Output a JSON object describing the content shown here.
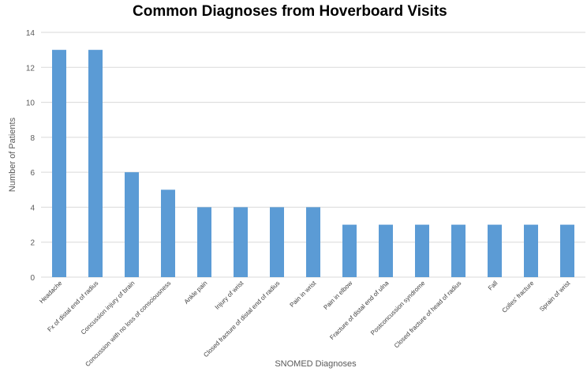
{
  "chart_data": {
    "type": "bar",
    "title": "Common Diagnoses from Hoverboard Visits",
    "xlabel": "SNOMED Diagnoses",
    "ylabel": "Number of Patients",
    "ylim": [
      0,
      14
    ],
    "yticks": [
      0,
      2,
      4,
      6,
      8,
      10,
      12,
      14
    ],
    "grid": true,
    "legend": "none",
    "bar_color": "#5b9bd5",
    "categories": [
      "Headache",
      "Fx of distal end of radius",
      "Concussion injury of brain",
      "Concussion with no loss of consciousness",
      "Ankle pain",
      "Injury of wrist",
      "Closed fracture of distal end of radius",
      "Pain in wrist",
      "Pain in elbow",
      "Fracture of distal end of ulna",
      "Postconcussion syndrome",
      "Closed fracture of head of radius",
      "Fall",
      "Colles' fracture",
      "Sprain of wrist"
    ],
    "values": [
      13,
      13,
      6,
      5,
      4,
      4,
      4,
      4,
      3,
      3,
      3,
      3,
      3,
      3,
      3
    ]
  }
}
